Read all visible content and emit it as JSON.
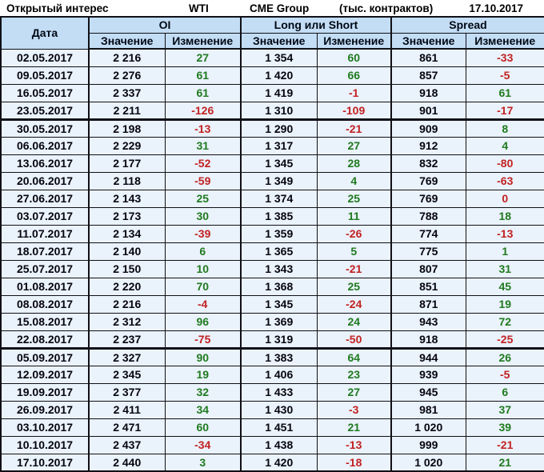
{
  "title_bar": {
    "label": "Открытый интерес",
    "instrument": "WTI",
    "exchange": "CME Group",
    "units": "(тыс. контрактов)",
    "date": "17.10.2017"
  },
  "table": {
    "date_header": "Дата",
    "groups": [
      {
        "label": "OI"
      },
      {
        "label": "Long или Short"
      },
      {
        "label": "Spread"
      }
    ],
    "sub_headers": [
      "Значение",
      "Изменение"
    ],
    "rows": [
      {
        "date": "02.05.2017",
        "oi": "2 216",
        "oi_chg": {
          "t": "27",
          "s": "pos"
        },
        "ls": "1 354",
        "ls_chg": {
          "t": "60",
          "s": "pos"
        },
        "sp": "861",
        "sp_chg": {
          "t": "-33",
          "s": "neg"
        },
        "thick_after": false
      },
      {
        "date": "09.05.2017",
        "oi": "2 276",
        "oi_chg": {
          "t": "61",
          "s": "pos"
        },
        "ls": "1 420",
        "ls_chg": {
          "t": "66",
          "s": "pos"
        },
        "sp": "857",
        "sp_chg": {
          "t": "-5",
          "s": "neg"
        },
        "thick_after": false
      },
      {
        "date": "16.05.2017",
        "oi": "2 337",
        "oi_chg": {
          "t": "61",
          "s": "pos"
        },
        "ls": "1 419",
        "ls_chg": {
          "t": "-1",
          "s": "neg"
        },
        "sp": "918",
        "sp_chg": {
          "t": "61",
          "s": "pos"
        },
        "thick_after": false
      },
      {
        "date": "23.05.2017",
        "oi": "2 211",
        "oi_chg": {
          "t": "-126",
          "s": "neg"
        },
        "ls": "1 310",
        "ls_chg": {
          "t": "-109",
          "s": "neg"
        },
        "sp": "901",
        "sp_chg": {
          "t": "-17",
          "s": "neg"
        },
        "thick_after": true
      },
      {
        "date": "30.05.2017",
        "oi": "2 198",
        "oi_chg": {
          "t": "-13",
          "s": "neg"
        },
        "ls": "1 290",
        "ls_chg": {
          "t": "-21",
          "s": "neg"
        },
        "sp": "909",
        "sp_chg": {
          "t": "8",
          "s": "pos"
        },
        "thick_after": false
      },
      {
        "date": "06.06.2017",
        "oi": "2 229",
        "oi_chg": {
          "t": "31",
          "s": "pos"
        },
        "ls": "1 317",
        "ls_chg": {
          "t": "27",
          "s": "pos"
        },
        "sp": "912",
        "sp_chg": {
          "t": "4",
          "s": "pos"
        },
        "thick_after": false
      },
      {
        "date": "13.06.2017",
        "oi": "2 177",
        "oi_chg": {
          "t": "-52",
          "s": "neg"
        },
        "ls": "1 345",
        "ls_chg": {
          "t": "28",
          "s": "pos"
        },
        "sp": "832",
        "sp_chg": {
          "t": "-80",
          "s": "neg"
        },
        "thick_after": false
      },
      {
        "date": "20.06.2017",
        "oi": "2 118",
        "oi_chg": {
          "t": "-59",
          "s": "neg"
        },
        "ls": "1 349",
        "ls_chg": {
          "t": "4",
          "s": "pos"
        },
        "sp": "769",
        "sp_chg": {
          "t": "-63",
          "s": "neg"
        },
        "thick_after": false
      },
      {
        "date": "27.06.2017",
        "oi": "2 143",
        "oi_chg": {
          "t": "25",
          "s": "pos"
        },
        "ls": "1 374",
        "ls_chg": {
          "t": "25",
          "s": "pos"
        },
        "sp": "769",
        "sp_chg": {
          "t": "0",
          "s": "neg"
        },
        "thick_after": false
      },
      {
        "date": "03.07.2017",
        "oi": "2 173",
        "oi_chg": {
          "t": "30",
          "s": "pos"
        },
        "ls": "1 385",
        "ls_chg": {
          "t": "11",
          "s": "pos"
        },
        "sp": "788",
        "sp_chg": {
          "t": "18",
          "s": "pos"
        },
        "thick_after": false
      },
      {
        "date": "11.07.2017",
        "oi": "2 134",
        "oi_chg": {
          "t": "-39",
          "s": "neg"
        },
        "ls": "1 359",
        "ls_chg": {
          "t": "-26",
          "s": "neg"
        },
        "sp": "774",
        "sp_chg": {
          "t": "-13",
          "s": "neg"
        },
        "thick_after": false
      },
      {
        "date": "18.07.2017",
        "oi": "2 140",
        "oi_chg": {
          "t": "6",
          "s": "pos"
        },
        "ls": "1 365",
        "ls_chg": {
          "t": "5",
          "s": "pos"
        },
        "sp": "775",
        "sp_chg": {
          "t": "1",
          "s": "pos"
        },
        "thick_after": false
      },
      {
        "date": "25.07.2017",
        "oi": "2 150",
        "oi_chg": {
          "t": "10",
          "s": "pos"
        },
        "ls": "1 343",
        "ls_chg": {
          "t": "-21",
          "s": "neg"
        },
        "sp": "807",
        "sp_chg": {
          "t": "31",
          "s": "pos"
        },
        "thick_after": false
      },
      {
        "date": "01.08.2017",
        "oi": "2 220",
        "oi_chg": {
          "t": "70",
          "s": "pos"
        },
        "ls": "1 368",
        "ls_chg": {
          "t": "25",
          "s": "pos"
        },
        "sp": "851",
        "sp_chg": {
          "t": "45",
          "s": "pos"
        },
        "thick_after": false
      },
      {
        "date": "08.08.2017",
        "oi": "2 216",
        "oi_chg": {
          "t": "-4",
          "s": "neg"
        },
        "ls": "1 345",
        "ls_chg": {
          "t": "-24",
          "s": "neg"
        },
        "sp": "871",
        "sp_chg": {
          "t": "19",
          "s": "pos"
        },
        "thick_after": false
      },
      {
        "date": "15.08.2017",
        "oi": "2 312",
        "oi_chg": {
          "t": "96",
          "s": "pos"
        },
        "ls": "1 369",
        "ls_chg": {
          "t": "24",
          "s": "pos"
        },
        "sp": "943",
        "sp_chg": {
          "t": "72",
          "s": "pos"
        },
        "thick_after": false
      },
      {
        "date": "22.08.2017",
        "oi": "2 237",
        "oi_chg": {
          "t": "-75",
          "s": "neg"
        },
        "ls": "1 319",
        "ls_chg": {
          "t": "-50",
          "s": "neg"
        },
        "sp": "918",
        "sp_chg": {
          "t": "-25",
          "s": "neg"
        },
        "thick_after": true
      },
      {
        "date": "05.09.2017",
        "oi": "2 327",
        "oi_chg": {
          "t": "90",
          "s": "pos"
        },
        "ls": "1 383",
        "ls_chg": {
          "t": "64",
          "s": "pos"
        },
        "sp": "944",
        "sp_chg": {
          "t": "26",
          "s": "pos"
        },
        "thick_after": false
      },
      {
        "date": "12.09.2017",
        "oi": "2 345",
        "oi_chg": {
          "t": "19",
          "s": "pos"
        },
        "ls": "1 406",
        "ls_chg": {
          "t": "23",
          "s": "pos"
        },
        "sp": "939",
        "sp_chg": {
          "t": "-5",
          "s": "neg"
        },
        "thick_after": false
      },
      {
        "date": "19.09.2017",
        "oi": "2 377",
        "oi_chg": {
          "t": "32",
          "s": "pos"
        },
        "ls": "1 433",
        "ls_chg": {
          "t": "27",
          "s": "pos"
        },
        "sp": "945",
        "sp_chg": {
          "t": "6",
          "s": "pos"
        },
        "thick_after": false
      },
      {
        "date": "26.09.2017",
        "oi": "2 411",
        "oi_chg": {
          "t": "34",
          "s": "pos"
        },
        "ls": "1 430",
        "ls_chg": {
          "t": "-3",
          "s": "neg"
        },
        "sp": "981",
        "sp_chg": {
          "t": "37",
          "s": "pos"
        },
        "thick_after": false
      },
      {
        "date": "03.10.2017",
        "oi": "2 471",
        "oi_chg": {
          "t": "60",
          "s": "pos"
        },
        "ls": "1 451",
        "ls_chg": {
          "t": "21",
          "s": "pos"
        },
        "sp": "1 020",
        "sp_chg": {
          "t": "39",
          "s": "pos"
        },
        "thick_after": false
      },
      {
        "date": "10.10.2017",
        "oi": "2 437",
        "oi_chg": {
          "t": "-34",
          "s": "neg"
        },
        "ls": "1 438",
        "ls_chg": {
          "t": "-13",
          "s": "neg"
        },
        "sp": "999",
        "sp_chg": {
          "t": "-21",
          "s": "neg"
        },
        "thick_after": false
      },
      {
        "date": "17.10.2017",
        "oi": "2 440",
        "oi_chg": {
          "t": "3",
          "s": "pos"
        },
        "ls": "1 420",
        "ls_chg": {
          "t": "-18",
          "s": "neg"
        },
        "sp": "1 020",
        "sp_chg": {
          "t": "21",
          "s": "pos"
        },
        "thick_after": false
      }
    ]
  },
  "colors": {
    "positive": "#1F7A1F",
    "negative": "#C22222",
    "header_bg": "#C3DDF5",
    "row_bg": "#EAF2FB",
    "border": "#101018"
  }
}
